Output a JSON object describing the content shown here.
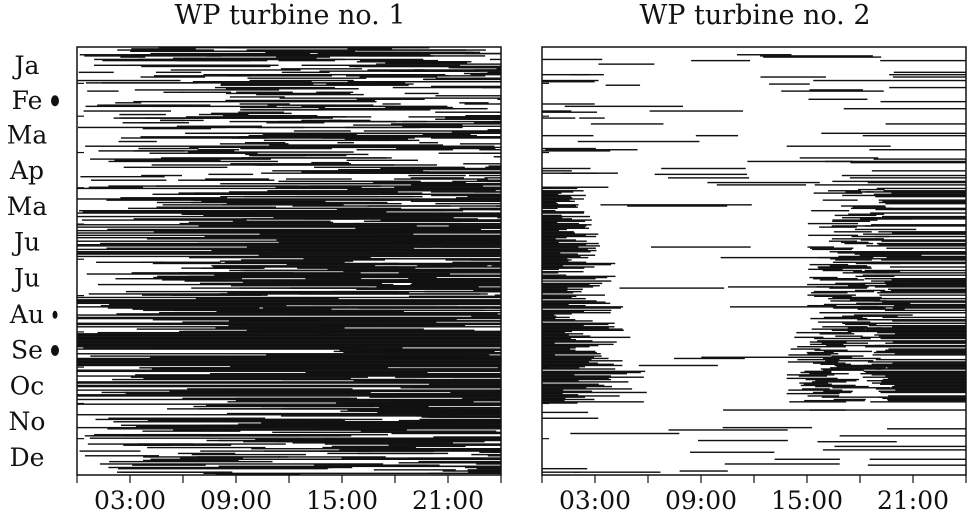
{
  "chart_data": [
    {
      "type": "heatmap",
      "title": "WP turbine no. 1",
      "xlabel": "",
      "ylabel": "",
      "x_range_hours": [
        0,
        24
      ],
      "x_ticks": [
        "03:00",
        "09:00",
        "15:00",
        "21:00"
      ],
      "y_ticks": [
        "Ja",
        "Fe",
        "Ma",
        "Ap",
        "Ma",
        "Ju",
        "Ju",
        "Au",
        "Se",
        "Oc",
        "No",
        "De"
      ],
      "colors": {
        "active": "#111111",
        "idle": "#ffffff"
      },
      "month_markers": [
        "Fe",
        "Au",
        "Se"
      ],
      "month_activity": [
        0.3,
        0.33,
        0.36,
        0.27,
        0.55,
        0.85,
        0.4,
        0.75,
        0.8,
        0.72,
        0.62,
        0.45
      ],
      "daily_pattern": "uniform across hours, activity varies by day"
    },
    {
      "type": "heatmap",
      "title": "WP turbine no. 2",
      "xlabel": "",
      "ylabel": "",
      "x_range_hours": [
        0,
        24
      ],
      "x_ticks": [
        "03:00",
        "09:00",
        "15:00",
        "21:00"
      ],
      "y_ticks": [],
      "colors": {
        "active": "#111111",
        "idle": "#ffffff"
      },
      "month_activity": [
        0.1,
        0.1,
        0.1,
        0.12,
        0.4,
        0.45,
        0.45,
        0.5,
        0.7,
        0.7,
        0.12,
        0.08
      ],
      "daily_pattern": "idle from about 04:00 to 15:00 in May-October; sparse activity in winter"
    }
  ]
}
